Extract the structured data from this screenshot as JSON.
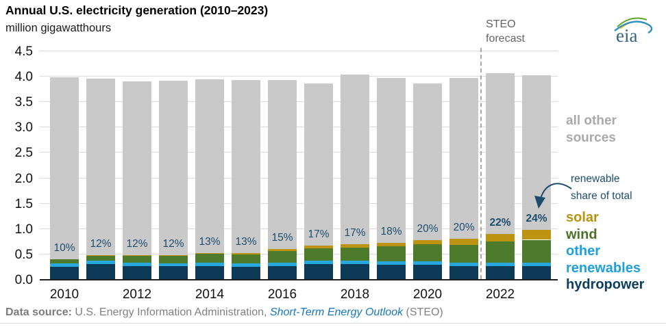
{
  "header": {
    "title": "Annual U.S. electricity generation (2010–2023)",
    "subtitle": "million gigawatthours"
  },
  "steo_label": {
    "line1": "STEO",
    "line2": "forecast"
  },
  "logo": {
    "text": "eia"
  },
  "legend": {
    "all_other": {
      "line1": "all other",
      "line2": "sources",
      "color": "#a9a9a9"
    },
    "share_note": {
      "line1": "renewable",
      "line2": "share of total",
      "color": "#1d4d6e"
    },
    "solar": {
      "label": "solar",
      "color": "#b8930e"
    },
    "wind": {
      "label": "wind",
      "color": "#4c7026"
    },
    "other_renewables": {
      "line1": "other",
      "line2": "renewables",
      "color": "#1ea0dc"
    },
    "hydropower": {
      "label": "hydropower",
      "color": "#0d3d5c"
    }
  },
  "footer": {
    "label": "Data source:",
    "text": " U.S. Energy Information Administration, ",
    "link": "Short-Term Energy Outlook",
    "suffix": " (STEO)"
  },
  "chart_data": {
    "type": "bar",
    "stacked": true,
    "title": "Annual U.S. electricity generation (2010–2023)",
    "ylabel": "million gigawatthours",
    "ylim": [
      0,
      4.5
    ],
    "ytick_step": 0.5,
    "grid": "horizontal",
    "legend_position": "right",
    "x": [
      2010,
      2011,
      2012,
      2013,
      2014,
      2015,
      2016,
      2017,
      2018,
      2019,
      2020,
      2021,
      2022,
      2023
    ],
    "x_tick_labels": [
      "2010",
      "2012",
      "2014",
      "2016",
      "2018",
      "2020",
      "2022"
    ],
    "series": [
      {
        "name": "hydropower",
        "color": "#0d3a57",
        "values": [
          0.245,
          0.3,
          0.26,
          0.25,
          0.25,
          0.24,
          0.26,
          0.29,
          0.29,
          0.287,
          0.28,
          0.25,
          0.26,
          0.25
        ]
      },
      {
        "name": "other renewables",
        "color": "#29a8e0",
        "values": [
          0.065,
          0.065,
          0.065,
          0.066,
          0.07,
          0.07,
          0.07,
          0.07,
          0.07,
          0.07,
          0.068,
          0.068,
          0.068,
          0.068
        ]
      },
      {
        "name": "wind",
        "color": "#4e7a2b",
        "values": [
          0.086,
          0.107,
          0.138,
          0.145,
          0.175,
          0.176,
          0.222,
          0.246,
          0.262,
          0.285,
          0.333,
          0.36,
          0.415,
          0.457
        ]
      },
      {
        "name": "solar",
        "color": "#bd9412",
        "values": [
          0.001,
          0.002,
          0.004,
          0.008,
          0.017,
          0.024,
          0.036,
          0.05,
          0.063,
          0.071,
          0.089,
          0.114,
          0.15,
          0.19
        ]
      },
      {
        "name": "all other sources",
        "color": "#c9c9c9",
        "values": [
          3.573,
          3.476,
          3.423,
          3.441,
          3.428,
          3.41,
          3.332,
          3.204,
          3.345,
          3.247,
          3.08,
          3.168,
          3.167,
          3.055
        ]
      }
    ],
    "totals": [
      3.97,
      3.95,
      3.89,
      3.91,
      3.94,
      3.92,
      3.92,
      3.86,
      4.03,
      3.96,
      3.85,
      3.96,
      4.06,
      4.02
    ],
    "renewable_share_labels": [
      "10%",
      "12%",
      "12%",
      "12%",
      "13%",
      "13%",
      "15%",
      "17%",
      "17%",
      "18%",
      "20%",
      "20%",
      "22%",
      "24%"
    ],
    "share_label_bold_from_index": 12,
    "forecast": {
      "label": "STEO forecast",
      "line_between": [
        2021,
        2022
      ]
    },
    "annotation": {
      "text": "renewable share of total",
      "points_to": "2023 renewable stack top"
    }
  }
}
